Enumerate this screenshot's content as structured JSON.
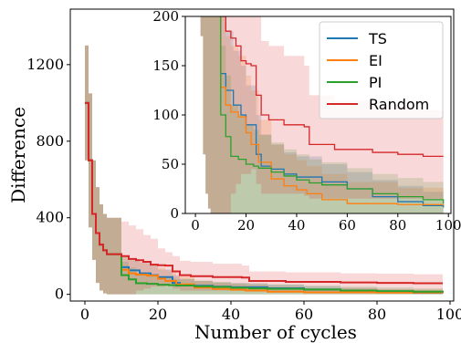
{
  "chart_data": [
    {
      "type": "line",
      "role": "main",
      "title": "",
      "xlabel": "Number of cycles",
      "ylabel": "Difference",
      "xlim": [
        -4,
        101
      ],
      "ylim": [
        -35,
        1490
      ],
      "xticks": [
        0,
        20,
        40,
        60,
        80,
        100
      ],
      "yticks": [
        0,
        400,
        800,
        1200
      ],
      "xtick_labels": [
        "0",
        "20",
        "40",
        "60",
        "80",
        "100"
      ],
      "ytick_labels": [
        "0",
        "400",
        "800",
        "1200"
      ],
      "grid": false,
      "series": [
        {
          "name": "TS",
          "color": "#1f77b4",
          "x": [
            0,
            1,
            2,
            3,
            4,
            5,
            6,
            8,
            10,
            12,
            15,
            18,
            20,
            24,
            26,
            30,
            35,
            40,
            50,
            60,
            70,
            80,
            90,
            98
          ],
          "y": [
            1000,
            700,
            420,
            320,
            260,
            230,
            210,
            210,
            142,
            125,
            110,
            100,
            90,
            60,
            48,
            45,
            40,
            37,
            32,
            25,
            17,
            12,
            8,
            6
          ],
          "band_low": [
            700,
            350,
            180,
            60,
            20,
            5,
            0,
            0,
            0,
            0,
            0,
            0,
            0,
            0,
            0,
            0,
            0,
            0,
            0,
            0,
            0,
            0,
            0,
            0
          ],
          "band_high": [
            1300,
            1050,
            700,
            560,
            470,
            420,
            400,
            400,
            200,
            185,
            165,
            150,
            130,
            100,
            80,
            70,
            62,
            58,
            50,
            42,
            34,
            28,
            22,
            20
          ]
        },
        {
          "name": "EI",
          "color": "#ff7f0e",
          "x": [
            0,
            1,
            2,
            3,
            4,
            5,
            6,
            8,
            10,
            12,
            14,
            17,
            20,
            22,
            25,
            30,
            35,
            40,
            44,
            50,
            60,
            80,
            98
          ],
          "y": [
            1000,
            700,
            420,
            320,
            260,
            230,
            210,
            210,
            128,
            110,
            103,
            98,
            82,
            70,
            52,
            35,
            28,
            24,
            20,
            14,
            10,
            9,
            8
          ],
          "band_low": [
            700,
            350,
            180,
            60,
            20,
            5,
            0,
            0,
            0,
            0,
            0,
            0,
            0,
            0,
            0,
            0,
            0,
            0,
            0,
            0,
            0,
            0,
            0
          ],
          "band_high": [
            1300,
            1050,
            700,
            560,
            470,
            420,
            400,
            400,
            200,
            180,
            170,
            160,
            140,
            125,
            95,
            70,
            60,
            54,
            48,
            40,
            32,
            26,
            22
          ]
        },
        {
          "name": "PI",
          "color": "#2ca02c",
          "x": [
            0,
            1,
            2,
            3,
            4,
            5,
            6,
            8,
            10,
            12,
            14,
            17,
            20,
            23,
            25,
            30,
            35,
            40,
            45,
            50,
            60,
            70,
            80,
            90,
            98
          ],
          "y": [
            1000,
            700,
            420,
            320,
            260,
            230,
            210,
            210,
            100,
            78,
            58,
            55,
            50,
            48,
            46,
            42,
            38,
            34,
            31,
            29,
            25,
            20,
            17,
            14,
            10
          ],
          "band_low": [
            700,
            350,
            180,
            60,
            20,
            5,
            0,
            0,
            0,
            0,
            0,
            0,
            0,
            0,
            0,
            0,
            0,
            0,
            0,
            0,
            0,
            0,
            0,
            0,
            0
          ],
          "band_high": [
            1300,
            1050,
            700,
            560,
            470,
            420,
            400,
            400,
            170,
            140,
            110,
            100,
            90,
            85,
            80,
            72,
            65,
            60,
            55,
            52,
            46,
            40,
            36,
            32,
            28
          ]
        },
        {
          "name": "Random",
          "color": "#d62728",
          "x": [
            0,
            1,
            2,
            3,
            4,
            5,
            6,
            8,
            10,
            12,
            14,
            16,
            18,
            20,
            22,
            24,
            26,
            29,
            35,
            43,
            45,
            55,
            70,
            80,
            90,
            98
          ],
          "y": [
            1000,
            700,
            420,
            320,
            260,
            230,
            210,
            210,
            200,
            185,
            178,
            170,
            155,
            152,
            150,
            120,
            100,
            95,
            90,
            88,
            70,
            65,
            62,
            60,
            58,
            58
          ],
          "band_low": [
            700,
            350,
            180,
            60,
            20,
            5,
            0,
            0,
            0,
            0,
            20,
            30,
            40,
            40,
            45,
            30,
            20,
            20,
            20,
            18,
            15,
            15,
            15,
            15,
            15,
            15
          ],
          "band_high": [
            1300,
            1050,
            700,
            560,
            470,
            420,
            400,
            400,
            380,
            360,
            340,
            310,
            290,
            240,
            220,
            200,
            175,
            170,
            160,
            150,
            120,
            115,
            110,
            108,
            105,
            105
          ]
        }
      ]
    },
    {
      "type": "line",
      "role": "inset",
      "title": "",
      "xlabel": "",
      "ylabel": "",
      "xlim": [
        -4,
        101
      ],
      "ylim": [
        0,
        200
      ],
      "xticks": [
        0,
        20,
        40,
        60,
        80,
        100
      ],
      "yticks": [
        0,
        50,
        100,
        150,
        200
      ],
      "xtick_labels": [
        "0",
        "20",
        "40",
        "60",
        "80",
        "100"
      ],
      "ytick_labels": [
        "0",
        "50",
        "100",
        "150",
        "200"
      ],
      "grid": false,
      "legend": {
        "placement": "top-right",
        "entries": [
          "TS",
          "EI",
          "PI",
          "Random"
        ]
      },
      "same_series_as_main": true
    }
  ]
}
